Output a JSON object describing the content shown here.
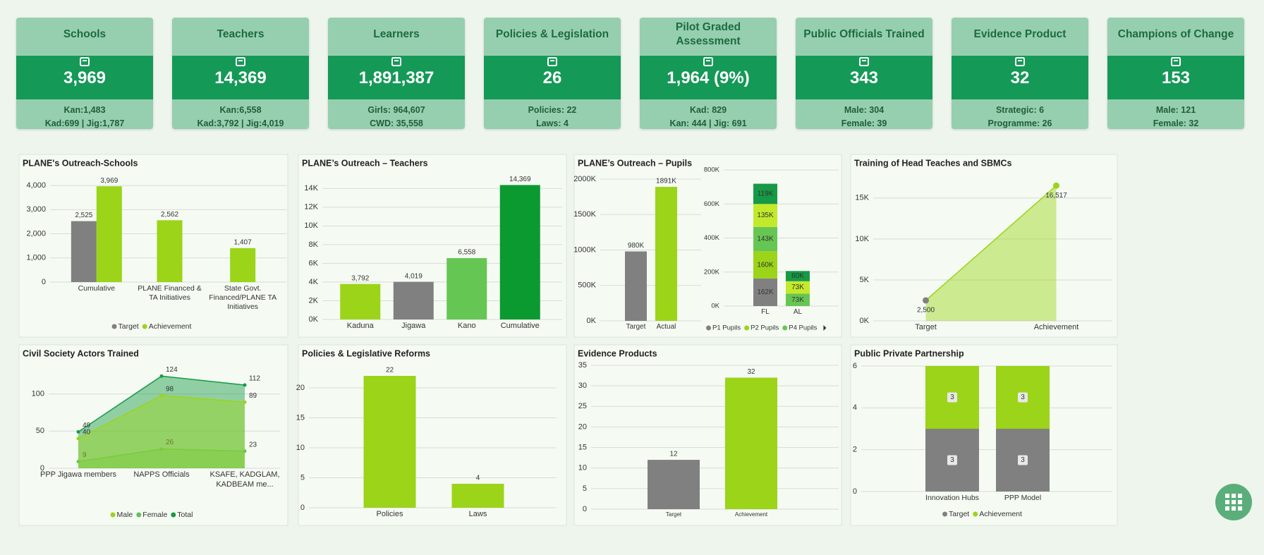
{
  "cards": [
    {
      "title": "Schools",
      "value": "3,969",
      "details": [
        "Kan:1,483",
        "Kad:699 | Jig:1,787"
      ]
    },
    {
      "title": "Teachers",
      "value": "14,369",
      "details": [
        "Kan:6,558",
        "Kad:3,792 | Jig:4,019"
      ]
    },
    {
      "title": "Learners",
      "value": "1,891,387",
      "details": [
        "Girls: 964,607",
        "CWD: 35,558"
      ]
    },
    {
      "title": "Policies & Legislation",
      "value": "26",
      "details": [
        "Policies: 22",
        "Laws: 4"
      ]
    },
    {
      "title": "Pilot Graded Assessment",
      "value": "1,964 (9%)",
      "details": [
        "Kad: 829",
        "Kan: 444 | Jig: 691"
      ]
    },
    {
      "title": "Public Officials Trained",
      "value": "343",
      "details": [
        "Male: 304",
        "Female: 39"
      ]
    },
    {
      "title": "Evidence Product",
      "value": "32",
      "details": [
        "Strategic: 6",
        "Programme: 26"
      ]
    },
    {
      "title": "Champions of Change",
      "value": "153",
      "details": [
        "Male: 121",
        "Female: 32"
      ]
    }
  ],
  "chart_data": [
    {
      "type": "bar",
      "title": "PLANE's Outreach-Schools",
      "categories": [
        "Cumulative",
        "PLANE Financed & TA Initiatives",
        "State Govt. Financed/PLANE TA Initiatives"
      ],
      "series": [
        {
          "name": "Target",
          "color": "#808080",
          "values": [
            2525,
            null,
            null
          ],
          "value_labels": [
            "2,525",
            null,
            null
          ]
        },
        {
          "name": "Achievement",
          "color": "#9bd418",
          "values": [
            3969,
            2562,
            1407
          ],
          "value_labels": [
            "3,969",
            "2,562",
            "1,407"
          ]
        }
      ],
      "ylim": [
        0,
        4500
      ],
      "yticks": [
        0,
        {
          "value": 1000,
          "label": "1,000"
        },
        {
          "value": 2000,
          "label": "2,000"
        },
        {
          "value": 3000,
          "label": "3,000"
        },
        {
          "value": 4000,
          "label": "4,000"
        }
      ],
      "grid": true,
      "legend": "bottom"
    },
    {
      "type": "bar",
      "title": "PLANE’s Outreach – Teachers",
      "categories": [
        "Kaduna",
        "Jigawa",
        "Kano",
        "Cumulative"
      ],
      "values": [
        3792,
        4019,
        6558,
        14369
      ],
      "value_labels": [
        "3,792",
        "4,019",
        "6,558",
        "14,369"
      ],
      "colors": [
        "#9bd418",
        "#808080",
        "#66c653",
        "#0a9a30"
      ],
      "ylim": [
        0,
        15000
      ],
      "yticks": [
        {
          "value": 0,
          "label": "0K"
        },
        {
          "value": 2000,
          "label": "2K"
        },
        {
          "value": 4000,
          "label": "4K"
        },
        {
          "value": 6000,
          "label": "6K"
        },
        {
          "value": 8000,
          "label": "8K"
        },
        {
          "value": 10000,
          "label": "10K"
        },
        {
          "value": 12000,
          "label": "12K"
        },
        {
          "value": 14000,
          "label": "14K"
        }
      ],
      "grid": true
    },
    {
      "type": "bar",
      "title": "PLANE’s Outreach – Pupils",
      "categories": [
        "Target",
        "Actual"
      ],
      "values": [
        980000,
        1891000
      ],
      "value_labels": [
        "980K",
        "1891K"
      ],
      "colors": [
        "#808080",
        "#9bd418"
      ],
      "ylim": [
        0,
        2000000
      ],
      "yticks": [
        {
          "value": 0,
          "label": "0K"
        },
        {
          "value": 500000,
          "label": "500K"
        },
        {
          "value": 1000000,
          "label": "1000K"
        },
        {
          "value": 1500000,
          "label": "1500K"
        },
        {
          "value": 2000000,
          "label": "2000K"
        }
      ],
      "grid": true
    },
    {
      "type": "stacked_bar",
      "categories": [
        "FL",
        "AL"
      ],
      "series": [
        {
          "name": "P1 Pupils",
          "color": "#808080",
          "values": [
            162000,
            null
          ],
          "value_labels": [
            "162K",
            null
          ]
        },
        {
          "name": "P2 Pupils",
          "color": "#9bd418",
          "values": [
            160000,
            null
          ],
          "value_labels": [
            "160K",
            null
          ]
        },
        {
          "name": "P4 Pupils",
          "color": "#66c653",
          "values": [
            143000,
            73000
          ],
          "value_labels": [
            "143K",
            "73K"
          ]
        },
        {
          "name": null,
          "color": "#c3ea2a",
          "values": [
            135000,
            73000
          ],
          "value_labels": [
            "135K",
            "73K"
          ]
        },
        {
          "name": null,
          "color": "#169a45",
          "values": [
            119000,
            60000
          ],
          "value_labels": [
            "119K",
            "60K"
          ]
        }
      ],
      "ylim": [
        0,
        800000
      ],
      "yticks": [
        {
          "value": 0,
          "label": "0K"
        },
        {
          "value": 200000,
          "label": "200K"
        },
        {
          "value": 400000,
          "label": "400K"
        },
        {
          "value": 600000,
          "label": "600K"
        },
        {
          "value": 800000,
          "label": "800K"
        }
      ],
      "grid": true,
      "legend": "bottom"
    },
    {
      "type": "area",
      "title": "Training of Head Teaches and SBMCs",
      "categories": [
        "Target",
        "Achievement"
      ],
      "values": [
        2500,
        16517
      ],
      "value_labels": [
        "2,500",
        "16,517"
      ],
      "color": "#9bd418",
      "point_colors": [
        "#808080",
        "#9bd418"
      ],
      "ylim": [
        0,
        18000
      ],
      "yticks": [
        {
          "value": 0,
          "label": "0K"
        },
        {
          "value": 5000,
          "label": "5K"
        },
        {
          "value": 10000,
          "label": "10K"
        },
        {
          "value": 15000,
          "label": "15K"
        }
      ],
      "grid": true
    },
    {
      "type": "area",
      "title": "Civil Society Actors Trained",
      "categories": [
        "PPP Jigawa members",
        "NAPPS Officials",
        "KSAFE, KADGLAM, KADBEAM me..."
      ],
      "series": [
        {
          "name": "Male",
          "color": "#9bd418",
          "values": [
            40,
            98,
            89
          ]
        },
        {
          "name": "Female",
          "color": "#5fc35a",
          "values": [
            9,
            26,
            23
          ]
        },
        {
          "name": "Total",
          "color": "#169a45",
          "values": [
            49,
            124,
            112
          ]
        }
      ],
      "ylim": [
        0,
        130
      ],
      "yticks": [
        0,
        50,
        100
      ],
      "grid": true,
      "legend": "bottom"
    },
    {
      "type": "bar",
      "title": "Policies & Legislative Reforms",
      "categories": [
        "Policies",
        "Laws"
      ],
      "values": [
        22,
        4
      ],
      "color": "#9bd418",
      "ylim": [
        0,
        24
      ],
      "yticks": [
        0,
        5,
        10,
        15,
        20
      ],
      "grid": true
    },
    {
      "type": "bar",
      "title": "Evidence Products",
      "categories": [
        "Target",
        "Achievement"
      ],
      "values": [
        12,
        32
      ],
      "colors": [
        "#808080",
        "#9bd418"
      ],
      "ylim": [
        0,
        35
      ],
      "yticks": [
        0,
        5,
        10,
        15,
        20,
        25,
        30,
        35
      ],
      "grid": true
    },
    {
      "type": "stacked_bar",
      "title": "Public Private Partnership",
      "categories": [
        "Innovation Hubs",
        "PPP Model"
      ],
      "series": [
        {
          "name": "Target",
          "color": "#808080",
          "values": [
            3,
            3
          ]
        },
        {
          "name": "Achievement",
          "color": "#9bd418",
          "values": [
            3,
            3
          ]
        }
      ],
      "ylim": [
        0,
        6
      ],
      "yticks": [
        0,
        2,
        4,
        6
      ],
      "grid": true,
      "legend": "bottom"
    }
  ]
}
